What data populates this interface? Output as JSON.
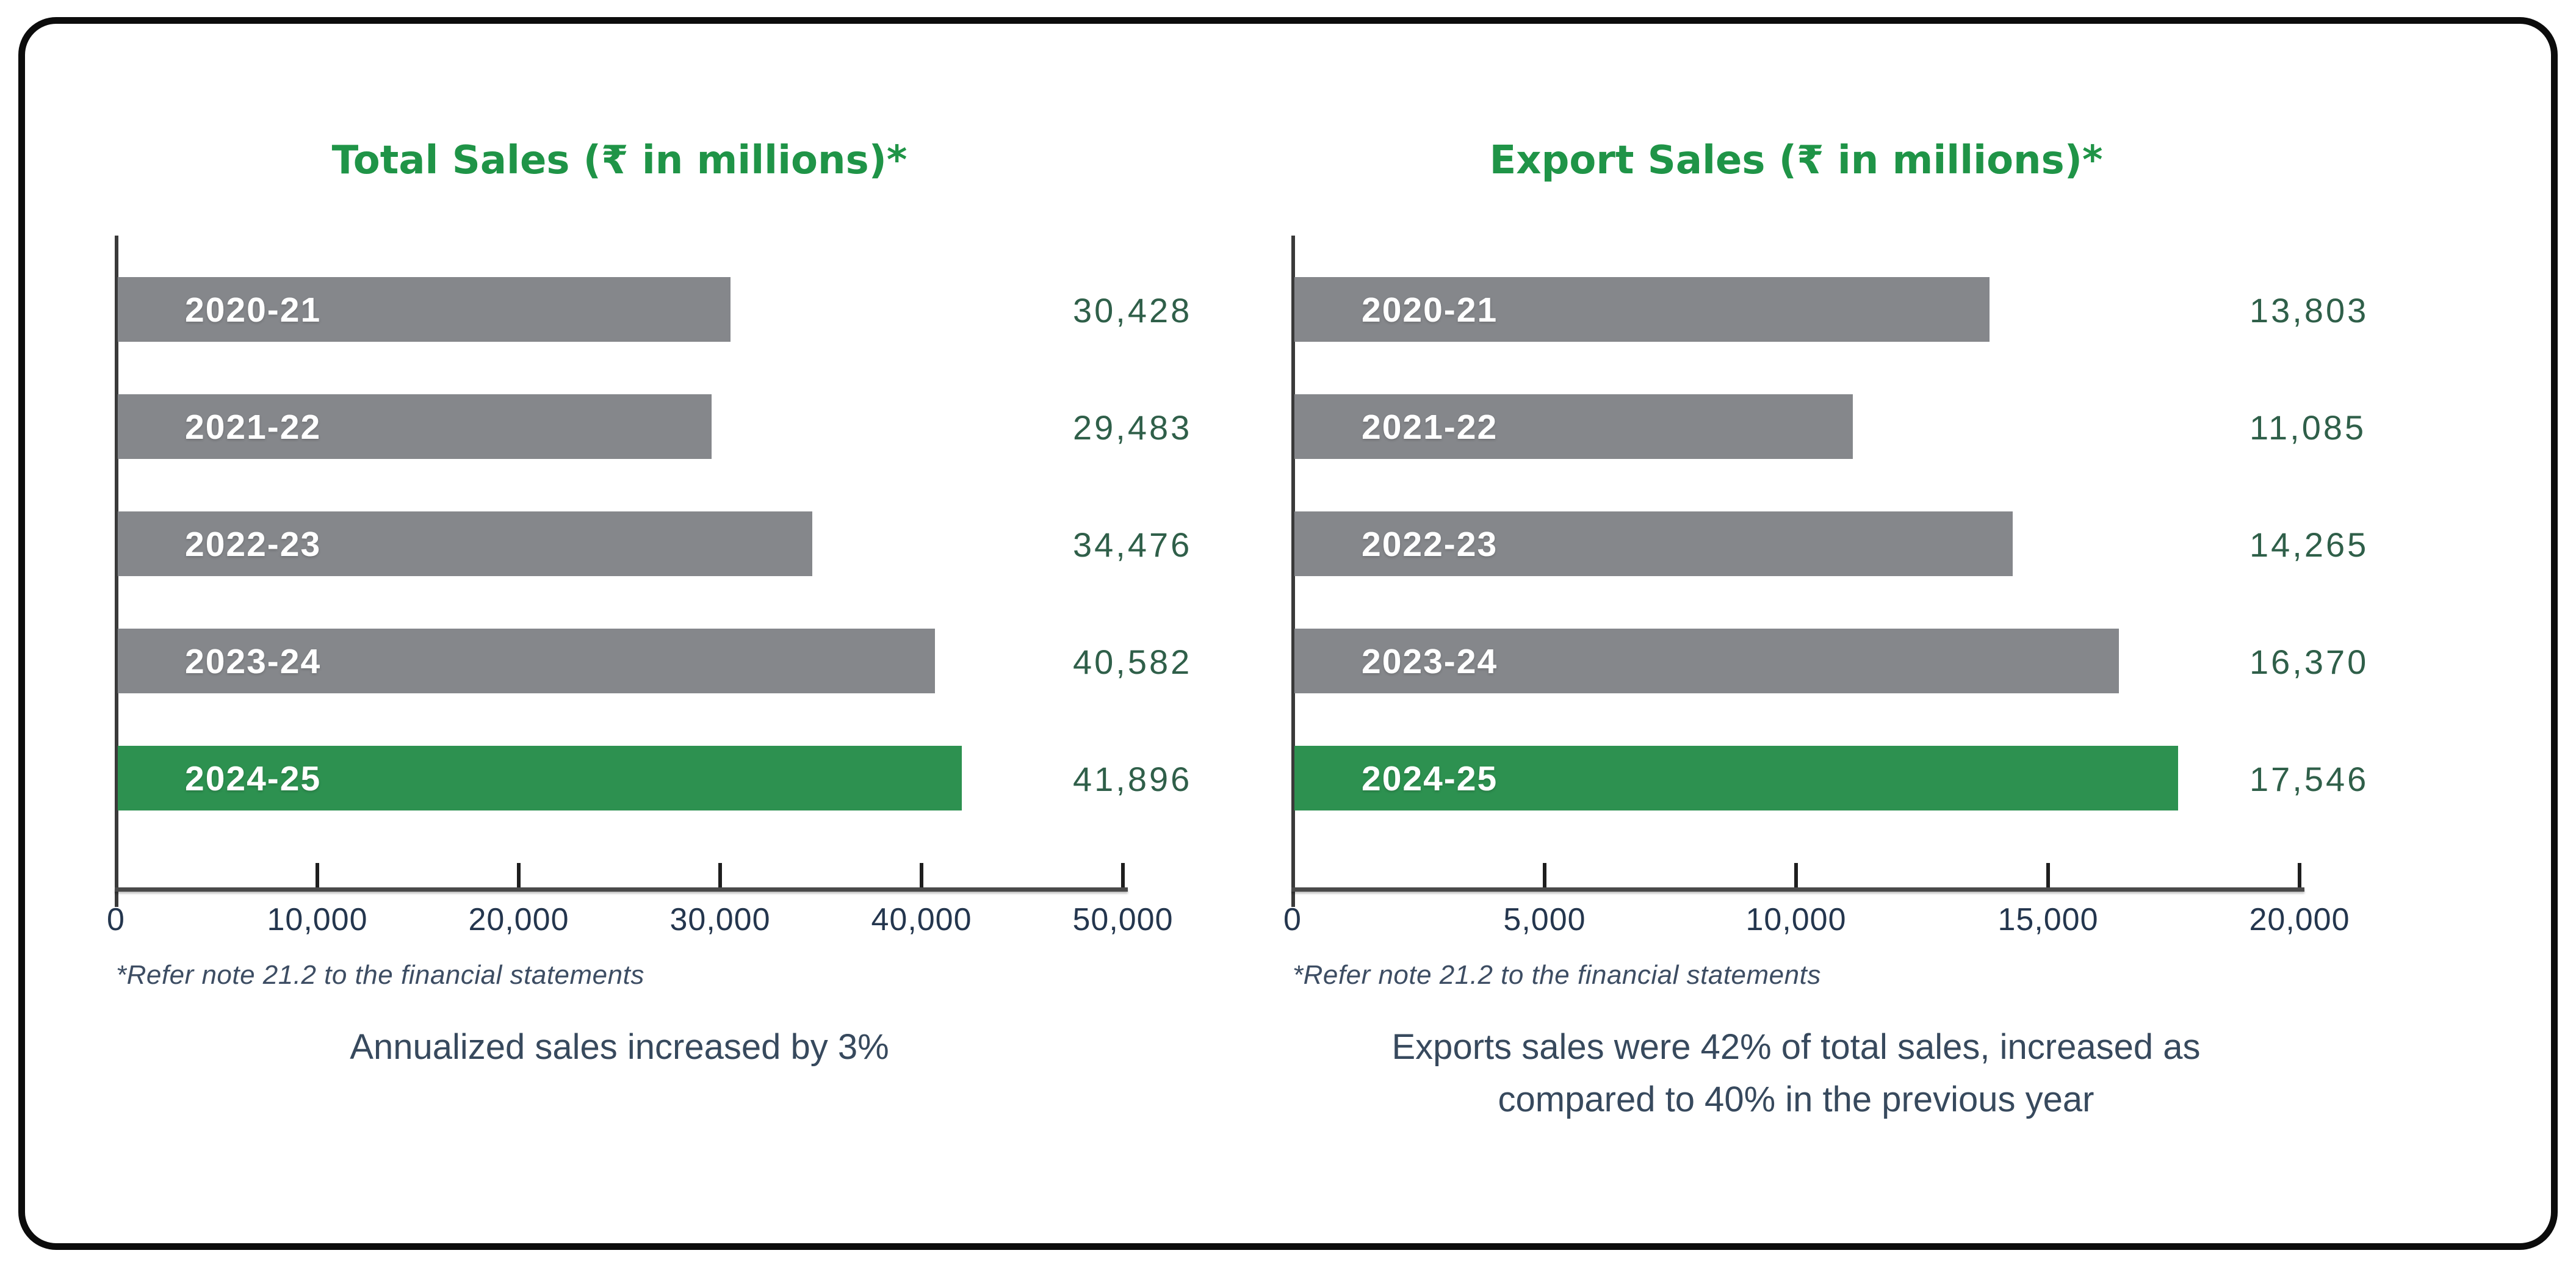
{
  "page": {
    "background": "#ffffff",
    "border_color": "#0c0c0c"
  },
  "colors": {
    "title_green": "#1f9447",
    "bar_gray": "#85878b",
    "bar_green": "#2d9150",
    "bar_label_white": "#ffffff",
    "value_text": "#2f5f49",
    "axis_label": "#24364e",
    "footnote_text": "#3d4d63",
    "caption_text": "#37495d",
    "axis_line": "#3a3a3a",
    "axis_line_h": "#4a4a4a",
    "tick": "#1e1e1e"
  },
  "chart_data": [
    {
      "type": "bar",
      "orientation": "horizontal",
      "title": "Total Sales (₹ in millions)*",
      "categories": [
        "2020-21",
        "2021-22",
        "2022-23",
        "2023-24",
        "2024-25"
      ],
      "values": [
        30428,
        29483,
        34476,
        40582,
        41896
      ],
      "value_labels": [
        "30,428",
        "29,483",
        "34,476",
        "40,582",
        "41,896"
      ],
      "highlight_index": 4,
      "xlim": [
        0,
        50000
      ],
      "x_ticks": [
        0,
        10000,
        20000,
        30000,
        40000,
        50000
      ],
      "x_tick_labels": [
        "0",
        "10,000",
        "20,000",
        "30,000",
        "40,000",
        "50,000"
      ],
      "grid": "off",
      "legend": "none",
      "footnote": "*Refer note 21.2 to the financial statements",
      "caption_lines": [
        "Annualized sales increased by 3%"
      ]
    },
    {
      "type": "bar",
      "orientation": "horizontal",
      "title": "Export Sales (₹ in millions)*",
      "categories": [
        "2020-21",
        "2021-22",
        "2022-23",
        "2023-24",
        "2024-25"
      ],
      "values": [
        13803,
        11085,
        14265,
        16370,
        17546
      ],
      "value_labels": [
        "13,803",
        "11,085",
        "14,265",
        "16,370",
        "17,546"
      ],
      "highlight_index": 4,
      "xlim": [
        0,
        20000
      ],
      "x_ticks": [
        0,
        5000,
        10000,
        15000,
        20000
      ],
      "x_tick_labels": [
        "0",
        "5,000",
        "10,000",
        "15,000",
        "20,000"
      ],
      "grid": "off",
      "legend": "none",
      "footnote": "*Refer note 21.2 to the financial statements",
      "caption_lines": [
        "Exports sales were 42% of total sales, increased as",
        "compared to 40% in the previous year"
      ]
    }
  ]
}
